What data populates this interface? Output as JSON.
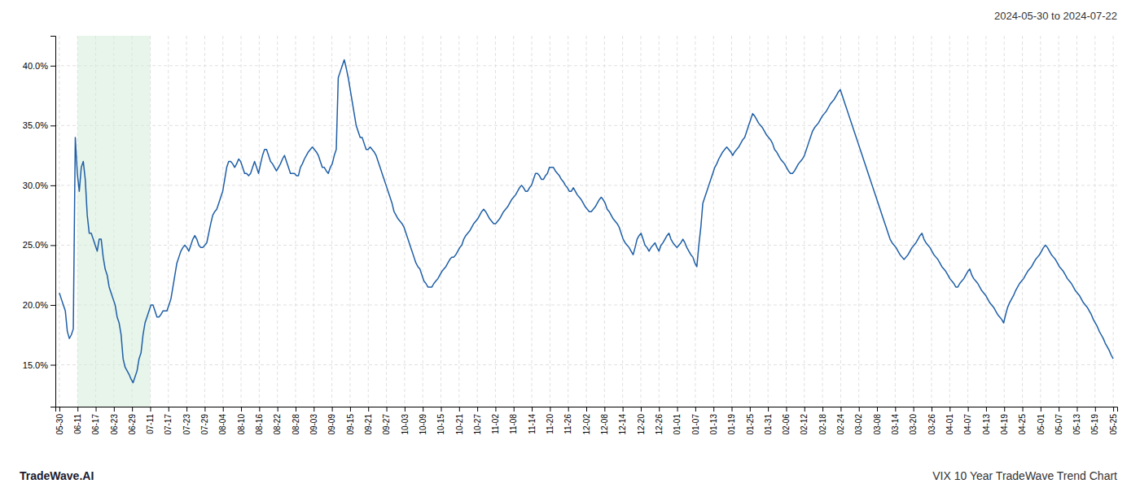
{
  "chart_data": {
    "type": "line",
    "title": "2024-05-30 to 2024-07-22",
    "annotations": [
      "TradeWave.AI",
      "VIX 10 Year TradeWave Trend Chart"
    ],
    "color": "#1f5fa6",
    "grid": true,
    "ylim": [
      0.115,
      0.425
    ],
    "yticks": [
      {
        "value": 0.15,
        "label": "15.0%"
      },
      {
        "value": 0.2,
        "label": "20.0%"
      },
      {
        "value": 0.25,
        "label": "25.0%"
      },
      {
        "value": 0.3,
        "label": "30.0%"
      },
      {
        "value": 0.35,
        "label": "35.0%"
      },
      {
        "value": 0.4,
        "label": "40.0%"
      }
    ],
    "xlim": [
      -2,
      531
    ],
    "xticks": [
      {
        "value": 0,
        "label": "05-30"
      },
      {
        "value": 9.1207,
        "label": "06-11"
      },
      {
        "value": 18.2414,
        "label": "06-17"
      },
      {
        "value": 27.3621,
        "label": "06-23"
      },
      {
        "value": 36.4828,
        "label": "06-29"
      },
      {
        "value": 45.6034,
        "label": "07-11"
      },
      {
        "value": 54.7241,
        "label": "07-17"
      },
      {
        "value": 63.8448,
        "label": "07-23"
      },
      {
        "value": 72.9655,
        "label": "07-29"
      },
      {
        "value": 82.0862,
        "label": "08-04"
      },
      {
        "value": 91.2069,
        "label": "08-10"
      },
      {
        "value": 100.3276,
        "label": "08-16"
      },
      {
        "value": 109.4483,
        "label": "08-22"
      },
      {
        "value": 118.569,
        "label": "08-28"
      },
      {
        "value": 127.6897,
        "label": "09-03"
      },
      {
        "value": 136.8103,
        "label": "09-09"
      },
      {
        "value": 145.931,
        "label": "09-15"
      },
      {
        "value": 155.0517,
        "label": "09-21"
      },
      {
        "value": 164.1724,
        "label": "09-27"
      },
      {
        "value": 173.2931,
        "label": "10-03"
      },
      {
        "value": 182.4138,
        "label": "10-09"
      },
      {
        "value": 191.5345,
        "label": "10-15"
      },
      {
        "value": 200.6552,
        "label": "10-21"
      },
      {
        "value": 209.7759,
        "label": "10-27"
      },
      {
        "value": 218.8966,
        "label": "11-02"
      },
      {
        "value": 228.0172,
        "label": "11-08"
      },
      {
        "value": 237.1379,
        "label": "11-14"
      },
      {
        "value": 246.2586,
        "label": "11-20"
      },
      {
        "value": 255.3793,
        "label": "11-26"
      },
      {
        "value": 264.5,
        "label": "12-02"
      },
      {
        "value": 273.6207,
        "label": "12-08"
      },
      {
        "value": 282.7414,
        "label": "12-14"
      },
      {
        "value": 291.8621,
        "label": "12-20"
      },
      {
        "value": 300.9828,
        "label": "12-26"
      },
      {
        "value": 310.1034,
        "label": "01-01"
      },
      {
        "value": 319.2241,
        "label": "01-07"
      },
      {
        "value": 328.3448,
        "label": "01-13"
      },
      {
        "value": 337.4655,
        "label": "01-19"
      },
      {
        "value": 346.5862,
        "label": "01-25"
      },
      {
        "value": 355.7069,
        "label": "01-31"
      },
      {
        "value": 364.8276,
        "label": "02-06"
      },
      {
        "value": 373.9483,
        "label": "02-12"
      },
      {
        "value": 383.069,
        "label": "02-18"
      },
      {
        "value": 392.1897,
        "label": "02-24"
      },
      {
        "value": 401.3103,
        "label": "03-02"
      },
      {
        "value": 410.431,
        "label": "03-08"
      },
      {
        "value": 419.5517,
        "label": "03-14"
      },
      {
        "value": 428.6724,
        "label": "03-20"
      },
      {
        "value": 437.7931,
        "label": "03-26"
      },
      {
        "value": 446.9138,
        "label": "04-01"
      },
      {
        "value": 456.0345,
        "label": "04-07"
      },
      {
        "value": 465.1552,
        "label": "04-13"
      },
      {
        "value": 474.2759,
        "label": "04-19"
      },
      {
        "value": 483.3966,
        "label": "04-25"
      },
      {
        "value": 492.5172,
        "label": "05-01"
      },
      {
        "value": 501.6379,
        "label": "05-07"
      },
      {
        "value": 510.7586,
        "label": "05-13"
      },
      {
        "value": 519.8793,
        "label": "05-19"
      },
      {
        "value": 529,
        "label": "05-25"
      }
    ],
    "shade": {
      "from": 9.1207,
      "to": 45.6034,
      "color": "#d4edda"
    },
    "values": [
      0.21,
      0.205,
      0.2,
      0.195,
      0.178,
      0.172,
      0.175,
      0.18,
      0.34,
      0.31,
      0.295,
      0.315,
      0.32,
      0.305,
      0.275,
      0.26,
      0.26,
      0.255,
      0.25,
      0.245,
      0.255,
      0.255,
      0.24,
      0.23,
      0.225,
      0.215,
      0.21,
      0.205,
      0.2,
      0.19,
      0.185,
      0.175,
      0.155,
      0.148,
      0.145,
      0.142,
      0.138,
      0.135,
      0.14,
      0.145,
      0.155,
      0.16,
      0.175,
      0.185,
      0.19,
      0.195,
      0.2,
      0.2,
      0.195,
      0.19,
      0.19,
      0.192,
      0.195,
      0.195,
      0.195,
      0.2,
      0.205,
      0.215,
      0.225,
      0.235,
      0.24,
      0.245,
      0.248,
      0.25,
      0.248,
      0.245,
      0.25,
      0.255,
      0.258,
      0.255,
      0.25,
      0.248,
      0.248,
      0.25,
      0.252,
      0.26,
      0.268,
      0.275,
      0.278,
      0.28,
      0.285,
      0.29,
      0.295,
      0.305,
      0.315,
      0.32,
      0.32,
      0.318,
      0.315,
      0.318,
      0.322,
      0.32,
      0.315,
      0.31,
      0.31,
      0.308,
      0.31,
      0.315,
      0.32,
      0.315,
      0.31,
      0.318,
      0.325,
      0.33,
      0.33,
      0.325,
      0.32,
      0.318,
      0.315,
      0.312,
      0.315,
      0.318,
      0.322,
      0.325,
      0.32,
      0.315,
      0.31,
      0.31,
      0.31,
      0.308,
      0.308,
      0.315,
      0.318,
      0.322,
      0.325,
      0.328,
      0.33,
      0.332,
      0.33,
      0.328,
      0.325,
      0.32,
      0.315,
      0.315,
      0.312,
      0.31,
      0.315,
      0.318,
      0.325,
      0.33,
      0.39,
      0.395,
      0.4,
      0.405,
      0.398,
      0.39,
      0.38,
      0.37,
      0.36,
      0.35,
      0.345,
      0.34,
      0.34,
      0.335,
      0.33,
      0.33,
      0.332,
      0.33,
      0.328,
      0.325,
      0.32,
      0.315,
      0.31,
      0.305,
      0.3,
      0.295,
      0.29,
      0.285,
      0.278,
      0.275,
      0.272,
      0.27,
      0.268,
      0.265,
      0.26,
      0.255,
      0.25,
      0.245,
      0.24,
      0.235,
      0.232,
      0.23,
      0.225,
      0.22,
      0.218,
      0.215,
      0.215,
      0.215,
      0.218,
      0.22,
      0.222,
      0.225,
      0.228,
      0.23,
      0.232,
      0.235,
      0.238,
      0.24,
      0.24,
      0.242,
      0.245,
      0.248,
      0.25,
      0.255,
      0.258,
      0.26,
      0.262,
      0.265,
      0.268,
      0.27,
      0.272,
      0.275,
      0.278,
      0.28,
      0.278,
      0.275,
      0.272,
      0.27,
      0.268,
      0.268,
      0.27,
      0.272,
      0.275,
      0.278,
      0.28,
      0.282,
      0.285,
      0.288,
      0.29,
      0.292,
      0.295,
      0.298,
      0.3,
      0.298,
      0.295,
      0.295,
      0.298,
      0.3,
      0.305,
      0.31,
      0.31,
      0.308,
      0.305,
      0.305,
      0.308,
      0.31,
      0.315,
      0.315,
      0.315,
      0.312,
      0.31,
      0.308,
      0.305,
      0.303,
      0.3,
      0.298,
      0.295,
      0.295,
      0.298,
      0.295,
      0.292,
      0.29,
      0.288,
      0.285,
      0.282,
      0.28,
      0.278,
      0.278,
      0.28,
      0.282,
      0.285,
      0.288,
      0.29,
      0.288,
      0.285,
      0.28,
      0.278,
      0.275,
      0.272,
      0.27,
      0.268,
      0.265,
      0.26,
      0.255,
      0.252,
      0.25,
      0.248,
      0.245,
      0.242,
      0.248,
      0.255,
      0.258,
      0.26,
      0.255,
      0.25,
      0.248,
      0.245,
      0.248,
      0.25,
      0.252,
      0.248,
      0.245,
      0.25,
      0.252,
      0.255,
      0.258,
      0.26,
      0.255,
      0.252,
      0.25,
      0.248,
      0.25,
      0.252,
      0.255,
      0.252,
      0.248,
      0.245,
      0.242,
      0.24,
      0.235,
      0.232,
      0.25,
      0.265,
      0.285,
      0.29,
      0.295,
      0.3,
      0.305,
      0.31,
      0.315,
      0.318,
      0.322,
      0.325,
      0.328,
      0.33,
      0.332,
      0.33,
      0.328,
      0.325,
      0.328,
      0.33,
      0.332,
      0.335,
      0.338,
      0.34,
      0.345,
      0.35,
      0.355,
      0.36,
      0.358,
      0.355,
      0.352,
      0.35,
      0.348,
      0.345,
      0.342,
      0.34,
      0.338,
      0.335,
      0.33,
      0.328,
      0.325,
      0.322,
      0.32,
      0.318,
      0.315,
      0.312,
      0.31,
      0.31,
      0.312,
      0.315,
      0.318,
      0.32,
      0.322,
      0.325,
      0.33,
      0.335,
      0.34,
      0.345,
      0.348,
      0.35,
      0.352,
      0.355,
      0.358,
      0.36,
      0.362,
      0.365,
      0.368,
      0.37,
      0.372,
      0.375,
      0.378,
      0.38,
      0.375,
      0.37,
      0.365,
      0.36,
      0.355,
      0.35,
      0.345,
      0.34,
      0.335,
      0.33,
      0.325,
      0.32,
      0.315,
      0.31,
      0.305,
      0.3,
      0.295,
      0.29,
      0.285,
      0.28,
      0.275,
      0.27,
      0.265,
      0.26,
      0.255,
      0.252,
      0.25,
      0.248,
      0.245,
      0.242,
      0.24,
      0.238,
      0.24,
      0.242,
      0.245,
      0.248,
      0.25,
      0.252,
      0.255,
      0.258,
      0.26,
      0.255,
      0.252,
      0.25,
      0.248,
      0.245,
      0.242,
      0.24,
      0.238,
      0.235,
      0.232,
      0.23,
      0.228,
      0.225,
      0.222,
      0.22,
      0.218,
      0.215,
      0.215,
      0.218,
      0.22,
      0.222,
      0.225,
      0.228,
      0.23,
      0.225,
      0.222,
      0.22,
      0.218,
      0.215,
      0.212,
      0.21,
      0.208,
      0.205,
      0.202,
      0.2,
      0.198,
      0.195,
      0.192,
      0.19,
      0.188,
      0.185,
      0.192,
      0.198,
      0.202,
      0.205,
      0.208,
      0.212,
      0.215,
      0.218,
      0.22,
      0.222,
      0.225,
      0.228,
      0.23,
      0.232,
      0.235,
      0.238,
      0.24,
      0.242,
      0.245,
      0.248,
      0.25,
      0.248,
      0.245,
      0.242,
      0.24,
      0.238,
      0.235,
      0.232,
      0.23,
      0.228,
      0.225,
      0.222,
      0.22,
      0.218,
      0.215,
      0.212,
      0.21,
      0.208,
      0.205,
      0.202,
      0.2,
      0.198,
      0.195,
      0.192,
      0.188,
      0.185,
      0.182,
      0.178,
      0.175,
      0.172,
      0.168,
      0.165,
      0.162,
      0.158,
      0.155
    ]
  }
}
